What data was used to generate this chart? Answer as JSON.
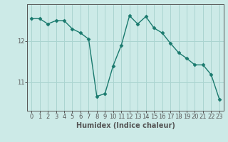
{
  "x": [
    0,
    1,
    2,
    3,
    4,
    5,
    6,
    7,
    8,
    9,
    10,
    11,
    12,
    13,
    14,
    15,
    16,
    17,
    18,
    19,
    20,
    21,
    22,
    23
  ],
  "y": [
    12.55,
    12.55,
    12.42,
    12.5,
    12.5,
    12.3,
    12.2,
    12.05,
    10.65,
    10.72,
    11.4,
    11.9,
    12.62,
    12.42,
    12.6,
    12.32,
    12.2,
    11.95,
    11.72,
    11.58,
    11.42,
    11.42,
    11.18,
    10.58
  ],
  "line_color": "#1a7a6e",
  "marker": "D",
  "marker_size": 2.5,
  "background_color": "#cceae7",
  "grid_color": "#aad4d0",
  "axis_color": "#555555",
  "xlabel": "Humidex (Indice chaleur)",
  "xlabel_fontsize": 7,
  "tick_fontsize": 6,
  "yticks": [
    11,
    12
  ],
  "ylim": [
    10.3,
    12.9
  ],
  "xlim": [
    -0.5,
    23.5
  ],
  "linewidth": 1.0
}
